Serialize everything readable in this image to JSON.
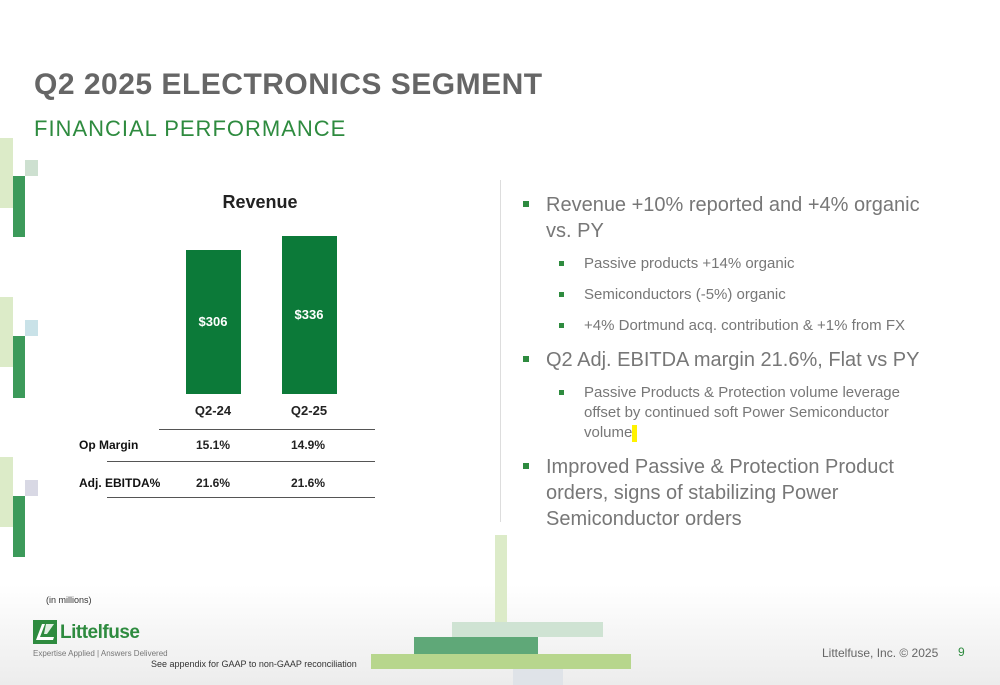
{
  "header": {
    "title": "Q2 2025 ELECTRONICS SEGMENT",
    "subtitle": "FINANCIAL PERFORMANCE"
  },
  "chart_data": {
    "type": "bar",
    "title": "Revenue",
    "categories": [
      "Q2-24",
      "Q2-25"
    ],
    "values": [
      306,
      336
    ],
    "data_labels": [
      "$306",
      "$336"
    ],
    "xlabel": "",
    "ylabel": "",
    "ylim": [
      0,
      336
    ],
    "bar_color": "#0c7a39",
    "grid": false
  },
  "metrics_table": {
    "rows": [
      {
        "label": "Op Margin",
        "values": [
          "15.1%",
          "14.9%"
        ]
      },
      {
        "label": "Adj. EBITDA%",
        "values": [
          "21.6%",
          "21.6%"
        ]
      }
    ]
  },
  "bullets": [
    {
      "text": "Revenue +10% reported and +4% organic vs. PY",
      "sub": [
        "Passive products +14% organic",
        "Semiconductors (-5%) organic",
        "+4% Dortmund acq. contribution & +1% from FX"
      ]
    },
    {
      "text": "Q2 Adj. EBITDA margin 21.6%, Flat vs PY",
      "sub": [
        "Passive Products & Protection volume leverage offset by continued soft Power Semiconductor volume"
      ]
    },
    {
      "text": "Improved Passive & Protection Product orders, signs of stabilizing Power Semiconductor orders",
      "sub": []
    }
  ],
  "footer": {
    "units_note": "(in millions)",
    "appendix_note": "See appendix for GAAP to non-GAAP reconciliation",
    "copyright": "Littelfuse, Inc. © 2025",
    "page_number": "9"
  },
  "logo": {
    "name": "Littelfuse",
    "tagline": "Expertise Applied | Answers Delivered"
  },
  "colors": {
    "accent_green": "#2e8b3f",
    "bar_green": "#0c7a39",
    "title_gray": "#666666"
  }
}
